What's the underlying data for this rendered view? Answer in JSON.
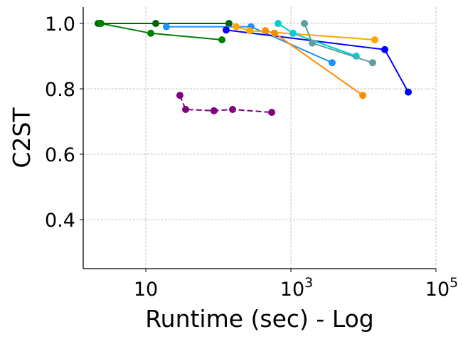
{
  "chart_data": {
    "type": "line",
    "title": "",
    "xlabel": "Runtime (sec) - Log",
    "ylabel": "C2ST",
    "xscale": "log",
    "xlim": [
      1.37,
      100000
    ],
    "ylim": [
      0.25,
      1.05
    ],
    "grid": true,
    "x_ticks": [
      {
        "value": 10,
        "base": "10",
        "exp": ""
      },
      {
        "value": 1000,
        "base": "10",
        "exp": "3"
      },
      {
        "value": 100000,
        "base": "10",
        "exp": "5"
      }
    ],
    "y_ticks": [
      {
        "value": 0.4,
        "label": "0.4"
      },
      {
        "value": 0.6,
        "label": "0.6"
      },
      {
        "value": 0.8,
        "label": "0.8"
      },
      {
        "value": 1.0,
        "label": "1.0"
      }
    ],
    "series": [
      {
        "name": "darkgreen",
        "color": "#006400",
        "dashed": false,
        "x": [
          2.2,
          2.4,
          13.7,
          140
        ],
        "y": [
          1.0,
          1.0,
          1.0,
          1.0
        ]
      },
      {
        "name": "green",
        "color": "#008000",
        "dashed": false,
        "x": [
          2.4,
          11.7,
          112
        ],
        "y": [
          1.0,
          0.97,
          0.95
        ]
      },
      {
        "name": "dodgerblue",
        "color": "#1e90ff",
        "dashed": false,
        "x": [
          19.2,
          282,
          3700
        ],
        "y": [
          0.99,
          0.99,
          0.88
        ]
      },
      {
        "name": "blue",
        "color": "#0000ff",
        "dashed": false,
        "x": [
          128,
          19700,
          41500
        ],
        "y": [
          0.98,
          0.92,
          0.79
        ]
      },
      {
        "name": "orange",
        "color": "#ffa500",
        "dashed": false,
        "x": [
          176,
          270,
          14350
        ],
        "y": [
          0.99,
          0.978,
          0.95
        ]
      },
      {
        "name": "darkorange",
        "color": "#ff8c00",
        "dashed": false,
        "x": [
          444,
          595,
          9800
        ],
        "y": [
          0.978,
          0.97,
          0.78
        ]
      },
      {
        "name": "darkturquoise",
        "color": "#00ced1",
        "dashed": false,
        "x": [
          666,
          1070,
          7950
        ],
        "y": [
          1.0,
          0.97,
          0.9
        ]
      },
      {
        "name": "cadetblue",
        "color": "#5f9ea0",
        "dashed": false,
        "x": [
          1535,
          1970,
          13400
        ],
        "y": [
          1.0,
          0.94,
          0.88
        ]
      },
      {
        "name": "purple",
        "color": "#800080",
        "dashed": true,
        "x": [
          29.5,
          35.4,
          87,
          157,
          544
        ],
        "y": [
          0.78,
          0.737,
          0.733,
          0.737,
          0.728
        ]
      }
    ]
  }
}
